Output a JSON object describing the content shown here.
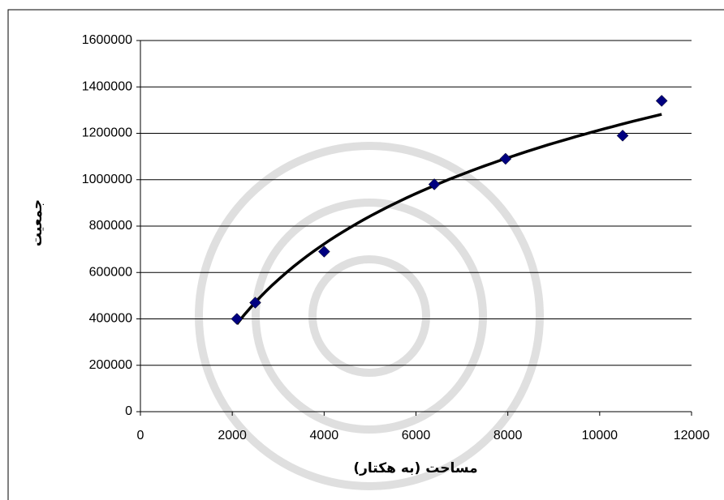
{
  "chart_data": {
    "type": "scatter",
    "x_label": "مساحت (به هکتار)",
    "y_label": "جمعیت",
    "series": [
      {
        "color": "#000080",
        "x": [
          2100,
          2500,
          4000,
          6400,
          7950,
          10500,
          11350
        ],
        "values": [
          400000,
          470000,
          690000,
          980000,
          1090000,
          1190000,
          1340000
        ]
      }
    ],
    "trendline": {
      "type": "logarithmic",
      "color": "#000000"
    },
    "xlim": [
      0,
      12000
    ],
    "xticks": [
      0,
      2000,
      4000,
      6000,
      8000,
      10000,
      12000
    ],
    "ylim": [
      0,
      1600000
    ],
    "yticks": [
      0,
      200000,
      400000,
      600000,
      800000,
      1000000,
      1200000,
      1400000,
      1600000
    ],
    "grid": true
  }
}
